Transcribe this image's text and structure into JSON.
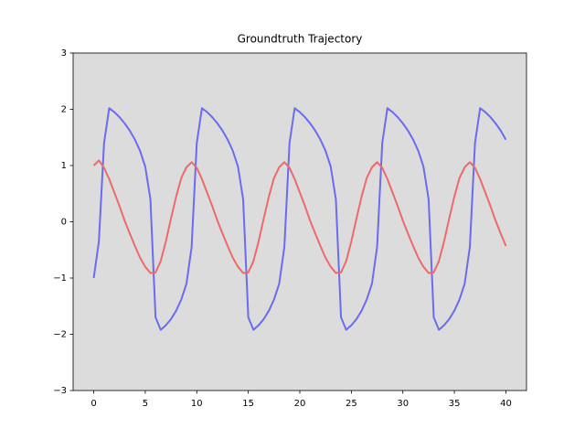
{
  "chart_data": {
    "type": "line",
    "title": "Groundtruth Trajectory",
    "background": "#dcdcdc",
    "x": [
      0,
      0.5,
      1,
      1.5,
      2,
      2.5,
      3,
      3.5,
      4,
      4.5,
      5,
      5.5,
      6,
      6.5,
      7,
      7.5,
      8,
      8.5,
      9,
      9.5,
      10,
      10.5,
      11,
      11.5,
      12,
      12.5,
      13,
      13.5,
      14,
      14.5,
      15,
      15.5,
      16,
      16.5,
      17,
      17.5,
      18,
      18.5,
      19,
      19.5,
      20,
      20.5,
      21,
      21.5,
      22,
      22.5,
      23,
      23.5,
      24,
      24.5,
      25,
      25.5,
      26,
      26.5,
      27,
      27.5,
      28,
      28.5,
      29,
      29.5,
      30,
      30.5,
      31,
      31.5,
      32,
      32.5,
      33,
      33.5,
      34,
      34.5,
      35,
      35.5,
      36,
      36.5,
      37,
      37.5,
      38,
      38.5,
      39,
      39.5,
      40
    ],
    "series": [
      {
        "color": "#6b6bf0",
        "values": [
          -1,
          -0.35,
          1.4,
          2.02,
          1.95,
          1.86,
          1.75,
          1.62,
          1.46,
          1.26,
          0.98,
          0.4,
          -1.7,
          -1.92,
          -1.84,
          -1.73,
          -1.58,
          -1.38,
          -1.1,
          -0.45,
          1.4,
          2.02,
          1.95,
          1.86,
          1.75,
          1.62,
          1.46,
          1.26,
          0.98,
          0.4,
          -1.7,
          -1.92,
          -1.84,
          -1.73,
          -1.58,
          -1.38,
          -1.1,
          -0.45,
          1.4,
          2.02,
          1.95,
          1.86,
          1.75,
          1.62,
          1.46,
          1.26,
          0.98,
          0.4,
          -1.7,
          -1.92,
          -1.84,
          -1.73,
          -1.58,
          -1.38,
          -1.1,
          -0.45,
          1.4,
          2.02,
          1.95,
          1.86,
          1.75,
          1.62,
          1.46,
          1.26,
          0.98,
          0.4,
          -1.7,
          -1.92,
          -1.84,
          -1.73,
          -1.58,
          -1.38,
          -1.1,
          -0.45,
          1.4,
          2.02,
          1.95,
          1.86,
          1.75,
          1.62,
          1.46
        ]
      },
      {
        "color": "#ec6a6a",
        "values": [
          1.0,
          1.09,
          0.96,
          0.76,
          0.52,
          0.28,
          0.02,
          -0.21,
          -0.43,
          -0.64,
          -0.8,
          -0.91,
          -0.9,
          -0.7,
          -0.35,
          0.06,
          0.45,
          0.78,
          0.97,
          1.06,
          0.96,
          0.76,
          0.52,
          0.28,
          0.02,
          -0.21,
          -0.43,
          -0.64,
          -0.8,
          -0.91,
          -0.9,
          -0.7,
          -0.35,
          0.06,
          0.45,
          0.78,
          0.97,
          1.06,
          0.96,
          0.76,
          0.52,
          0.28,
          0.02,
          -0.21,
          -0.43,
          -0.64,
          -0.8,
          -0.91,
          -0.9,
          -0.7,
          -0.35,
          0.06,
          0.45,
          0.78,
          0.97,
          1.06,
          0.96,
          0.76,
          0.52,
          0.28,
          0.02,
          -0.21,
          -0.43,
          -0.64,
          -0.8,
          -0.91,
          -0.9,
          -0.7,
          -0.35,
          0.06,
          0.45,
          0.78,
          0.97,
          1.06,
          0.96,
          0.76,
          0.52,
          0.28,
          0.02,
          -0.21,
          -0.43
        ]
      }
    ],
    "xlim": [
      -2,
      42
    ],
    "ylim": [
      -3,
      3
    ],
    "xticks": [
      0,
      5,
      10,
      15,
      20,
      25,
      30,
      35,
      40
    ],
    "yticks": [
      {
        "value": -3,
        "label": "−3"
      },
      {
        "value": -2,
        "label": "−2"
      },
      {
        "value": -1,
        "label": "−1"
      },
      0,
      1,
      2,
      3
    ]
  }
}
